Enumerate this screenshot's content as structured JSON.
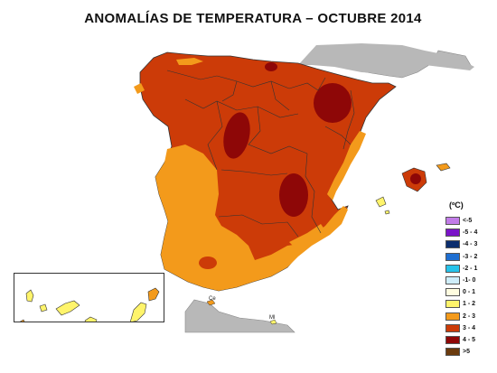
{
  "title": "ANOMALÍAS DE TEMPERATURA – OCTUBRE 2014",
  "legend": {
    "unit": "(ºC)",
    "items": [
      {
        "label": "<-5",
        "color": "#c27ce8"
      },
      {
        "label": "-5 - 4",
        "color": "#7a14c8"
      },
      {
        "label": "-4 - 3",
        "color": "#0c2e6e"
      },
      {
        "label": "-3 - 2",
        "color": "#1f6fd1"
      },
      {
        "label": "-2 - 1",
        "color": "#27c3ea"
      },
      {
        "label": "-1- 0",
        "color": "#cfeefb"
      },
      {
        "label": "0 - 1",
        "color": "#fffde0"
      },
      {
        "label": "1 - 2",
        "color": "#fff46b"
      },
      {
        "label": "2 - 3",
        "color": "#f39a1b"
      },
      {
        "label": "3 - 4",
        "color": "#cc3b08"
      },
      {
        "label": "4 - 5",
        "color": "#8e0707"
      },
      {
        "label": ">5",
        "color": "#6b3b0e"
      }
    ]
  },
  "cities": {
    "ceuta": "Ce",
    "melilla": "Ml"
  },
  "colors": {
    "sea": "#ffffff",
    "neighbors": "#b8b8b8"
  }
}
